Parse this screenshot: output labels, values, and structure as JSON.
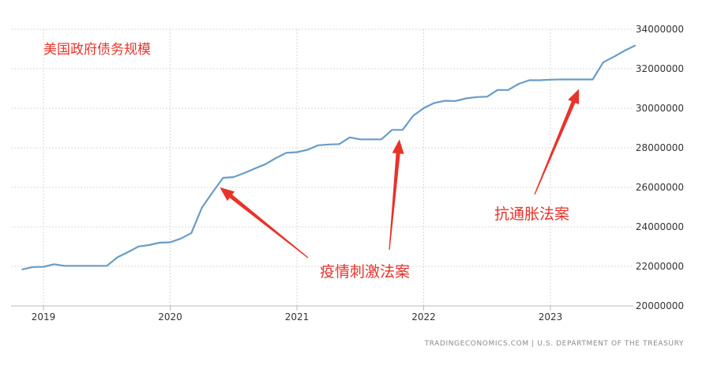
{
  "chart_data": {
    "type": "line",
    "title": "美国政府债务规模",
    "xlabel": "",
    "ylabel": "",
    "x_tick_labels": [
      "2019",
      "2020",
      "2021",
      "2022",
      "2023"
    ],
    "y_tick_labels": [
      "20000000",
      "22000000",
      "24000000",
      "26000000",
      "28000000",
      "30000000",
      "32000000",
      "34000000"
    ],
    "ylim": [
      19500000,
      34000000
    ],
    "grid": true,
    "series": [
      {
        "color": "#6a9cc7",
        "points": [
          [
            "2018-11",
            21850000
          ],
          [
            "2018-12",
            21970000
          ],
          [
            "2019-01",
            21980000
          ],
          [
            "2019-02",
            22110000
          ],
          [
            "2019-03",
            22030000
          ],
          [
            "2019-04",
            22030000
          ],
          [
            "2019-05",
            22030000
          ],
          [
            "2019-06",
            22030000
          ],
          [
            "2019-07",
            22030000
          ],
          [
            "2019-08",
            22460000
          ],
          [
            "2019-09",
            22720000
          ],
          [
            "2019-10",
            23010000
          ],
          [
            "2019-11",
            23080000
          ],
          [
            "2019-12",
            23200000
          ],
          [
            "2020-01",
            23220000
          ],
          [
            "2020-02",
            23410000
          ],
          [
            "2020-03",
            23690000
          ],
          [
            "2020-04",
            24970000
          ],
          [
            "2020-05",
            25740000
          ],
          [
            "2020-06",
            26480000
          ],
          [
            "2020-07",
            26520000
          ],
          [
            "2020-08",
            26720000
          ],
          [
            "2020-09",
            26950000
          ],
          [
            "2020-10",
            27170000
          ],
          [
            "2020-11",
            27480000
          ],
          [
            "2020-12",
            27750000
          ],
          [
            "2021-01",
            27780000
          ],
          [
            "2021-02",
            27900000
          ],
          [
            "2021-03",
            28130000
          ],
          [
            "2021-04",
            28170000
          ],
          [
            "2021-05",
            28190000
          ],
          [
            "2021-06",
            28530000
          ],
          [
            "2021-07",
            28430000
          ],
          [
            "2021-08",
            28430000
          ],
          [
            "2021-09",
            28430000
          ],
          [
            "2021-10",
            28910000
          ],
          [
            "2021-11",
            28910000
          ],
          [
            "2021-12",
            29620000
          ],
          [
            "2022-01",
            30010000
          ],
          [
            "2022-02",
            30270000
          ],
          [
            "2022-03",
            30380000
          ],
          [
            "2022-04",
            30370000
          ],
          [
            "2022-05",
            30500000
          ],
          [
            "2022-06",
            30570000
          ],
          [
            "2022-07",
            30590000
          ],
          [
            "2022-08",
            30930000
          ],
          [
            "2022-09",
            30930000
          ],
          [
            "2022-10",
            31240000
          ],
          [
            "2022-11",
            31420000
          ],
          [
            "2022-12",
            31420000
          ],
          [
            "2023-01",
            31450000
          ],
          [
            "2023-02",
            31460000
          ],
          [
            "2023-03",
            31460000
          ],
          [
            "2023-04",
            31460000
          ],
          [
            "2023-05",
            31460000
          ],
          [
            "2023-06",
            32330000
          ],
          [
            "2023-07",
            32610000
          ],
          [
            "2023-08",
            32910000
          ],
          [
            "2023-09",
            33170000
          ]
        ]
      }
    ],
    "annotations": [
      {
        "text": "疫情刺激法案",
        "points_to": [
          "2020-06",
          26480000
        ]
      },
      {
        "text": "疫情刺激法案",
        "points_to": [
          "2021-11",
          28910000
        ]
      },
      {
        "text": "抗通胀法案",
        "points_to": [
          "2023-04",
          31460000
        ]
      }
    ],
    "source": "TRADINGECONOMICS.COM  |  U.S. DEPARTMENT OF THE TREASURY"
  }
}
